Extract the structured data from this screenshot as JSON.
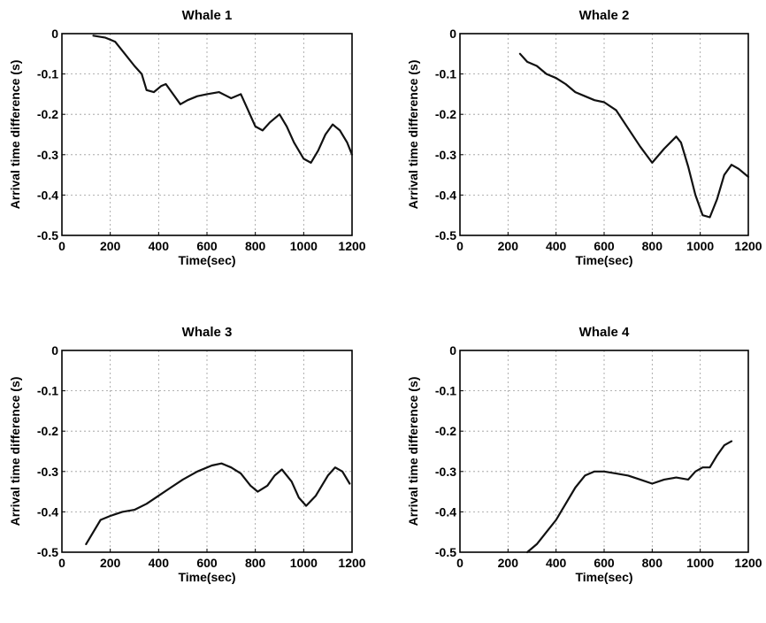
{
  "chart_data": [
    {
      "type": "line",
      "title": "Whale 1",
      "xlabel": "Time(sec)",
      "ylabel": "Arrival time difference (s)",
      "xlim": [
        0,
        1200
      ],
      "ylim": [
        -0.5,
        0
      ],
      "xticks": [
        "0",
        "200",
        "400",
        "600",
        "800",
        "1000",
        "1200"
      ],
      "yticks": [
        "0",
        "-0.1",
        "-0.2",
        "-0.3",
        "-0.4",
        "-0.5"
      ],
      "grid": true,
      "series": [
        {
          "x": [
            130,
            180,
            220,
            260,
            300,
            330,
            350,
            380,
            410,
            430,
            460,
            490,
            520,
            560,
            600,
            650,
            700,
            740,
            770,
            800,
            830,
            860,
            900,
            930,
            960,
            1000,
            1030,
            1060,
            1090,
            1120,
            1150,
            1180,
            1200
          ],
          "y": [
            -0.005,
            -0.01,
            -0.02,
            -0.05,
            -0.08,
            -0.1,
            -0.14,
            -0.145,
            -0.13,
            -0.125,
            -0.15,
            -0.175,
            -0.165,
            -0.155,
            -0.15,
            -0.145,
            -0.16,
            -0.15,
            -0.19,
            -0.23,
            -0.24,
            -0.22,
            -0.2,
            -0.23,
            -0.27,
            -0.31,
            -0.32,
            -0.29,
            -0.25,
            -0.225,
            -0.24,
            -0.27,
            -0.3
          ]
        }
      ]
    },
    {
      "type": "line",
      "title": "Whale 2",
      "xlabel": "Time(sec)",
      "ylabel": "Arrival time difference (s)",
      "xlim": [
        0,
        1200
      ],
      "ylim": [
        -0.5,
        0
      ],
      "xticks": [
        "0",
        "200",
        "400",
        "600",
        "800",
        "1000",
        "1200"
      ],
      "yticks": [
        "0",
        "-0.1",
        "-0.2",
        "-0.3",
        "-0.4",
        "-0.5"
      ],
      "grid": true,
      "series": [
        {
          "x": [
            250,
            280,
            320,
            360,
            400,
            440,
            480,
            520,
            560,
            600,
            650,
            700,
            750,
            800,
            850,
            900,
            920,
            950,
            980,
            1010,
            1040,
            1070,
            1100,
            1130,
            1160,
            1200
          ],
          "y": [
            -0.05,
            -0.07,
            -0.08,
            -0.1,
            -0.11,
            -0.125,
            -0.145,
            -0.155,
            -0.165,
            -0.17,
            -0.19,
            -0.235,
            -0.28,
            -0.32,
            -0.285,
            -0.255,
            -0.27,
            -0.33,
            -0.4,
            -0.45,
            -0.455,
            -0.41,
            -0.35,
            -0.325,
            -0.335,
            -0.355
          ]
        }
      ]
    },
    {
      "type": "line",
      "title": "Whale 3",
      "xlabel": "Time(sec)",
      "ylabel": "Arrival time difference (s)",
      "xlim": [
        0,
        1200
      ],
      "ylim": [
        -0.5,
        0
      ],
      "xticks": [
        "0",
        "200",
        "400",
        "600",
        "800",
        "1000",
        "1200"
      ],
      "yticks": [
        "0",
        "-0.1",
        "-0.2",
        "-0.3",
        "-0.4",
        "-0.5"
      ],
      "grid": true,
      "series": [
        {
          "x": [
            100,
            130,
            160,
            200,
            250,
            300,
            350,
            400,
            450,
            500,
            560,
            620,
            660,
            700,
            740,
            780,
            810,
            850,
            880,
            910,
            950,
            980,
            1010,
            1050,
            1100,
            1130,
            1160,
            1190
          ],
          "y": [
            -0.48,
            -0.45,
            -0.42,
            -0.41,
            -0.4,
            -0.395,
            -0.38,
            -0.36,
            -0.34,
            -0.32,
            -0.3,
            -0.285,
            -0.28,
            -0.29,
            -0.305,
            -0.335,
            -0.35,
            -0.335,
            -0.31,
            -0.295,
            -0.325,
            -0.365,
            -0.385,
            -0.36,
            -0.31,
            -0.29,
            -0.3,
            -0.33
          ]
        }
      ]
    },
    {
      "type": "line",
      "title": "Whale 4",
      "xlabel": "Time(sec)",
      "ylabel": "Arrival time difference (s)",
      "xlim": [
        0,
        1200
      ],
      "ylim": [
        -0.5,
        0
      ],
      "xticks": [
        "0",
        "200",
        "400",
        "600",
        "800",
        "1000",
        "1200"
      ],
      "yticks": [
        "0",
        "-0.1",
        "-0.2",
        "-0.3",
        "-0.4",
        "-0.5"
      ],
      "grid": true,
      "series": [
        {
          "x": [
            280,
            320,
            360,
            400,
            440,
            480,
            520,
            560,
            600,
            650,
            700,
            750,
            800,
            850,
            900,
            950,
            980,
            1010,
            1040,
            1070,
            1100,
            1130
          ],
          "y": [
            -0.5,
            -0.48,
            -0.45,
            -0.42,
            -0.38,
            -0.34,
            -0.31,
            -0.3,
            -0.3,
            -0.305,
            -0.31,
            -0.32,
            -0.33,
            -0.32,
            -0.315,
            -0.32,
            -0.3,
            -0.29,
            -0.29,
            -0.26,
            -0.235,
            -0.225
          ]
        }
      ]
    }
  ]
}
